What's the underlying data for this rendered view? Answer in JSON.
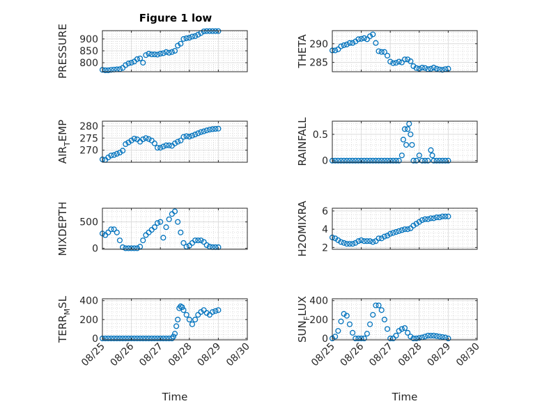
{
  "title": "Figure 1 low",
  "chart_data": [
    {
      "type": "scatter",
      "ylabel": "PRESSURE",
      "ylim": [
        762,
        935
      ],
      "yticks": [
        800,
        850,
        900
      ],
      "xticks": [
        "08/25",
        "08/26",
        "08/27",
        "08/28",
        "08/29",
        "08/30"
      ],
      "xlim": [
        0,
        5
      ],
      "xlabel": "",
      "grid": true,
      "marker_color": "#0072BD",
      "x": [
        0.0,
        0.1,
        0.2,
        0.3,
        0.4,
        0.5,
        0.6,
        0.7,
        0.8,
        0.9,
        1.0,
        1.1,
        1.2,
        1.3,
        1.4,
        1.5,
        1.6,
        1.7,
        1.8,
        1.9,
        2.0,
        2.1,
        2.2,
        2.3,
        2.4,
        2.5,
        2.6,
        2.7,
        2.8,
        2.9,
        3.0,
        3.1,
        3.2,
        3.3,
        3.4,
        3.5,
        3.6,
        3.7,
        3.8,
        3.9,
        4.0
      ],
      "y": [
        770,
        768,
        768,
        770,
        771,
        772,
        773,
        778,
        790,
        797,
        800,
        805,
        815,
        818,
        800,
        832,
        838,
        835,
        835,
        834,
        838,
        840,
        845,
        842,
        845,
        850,
        872,
        880,
        900,
        903,
        905,
        910,
        912,
        918,
        925,
        932,
        933,
        933,
        933,
        933,
        933
      ]
    },
    {
      "type": "scatter",
      "ylabel": "THETA",
      "ylim": [
        282.5,
        293.5
      ],
      "yticks": [
        285,
        290
      ],
      "xticks": [
        "08/25",
        "08/26",
        "08/27",
        "08/28",
        "08/29",
        "08/30"
      ],
      "xlim": [
        0,
        5
      ],
      "xlabel": "",
      "grid": true,
      "marker_color": "#0072BD",
      "x": [
        0.0,
        0.1,
        0.2,
        0.3,
        0.4,
        0.5,
        0.6,
        0.7,
        0.8,
        0.9,
        1.0,
        1.1,
        1.2,
        1.3,
        1.4,
        1.5,
        1.6,
        1.7,
        1.8,
        1.9,
        2.0,
        2.1,
        2.2,
        2.3,
        2.4,
        2.5,
        2.6,
        2.7,
        2.8,
        2.9,
        3.0,
        3.1,
        3.2,
        3.3,
        3.4,
        3.5,
        3.6,
        3.7,
        3.8,
        3.9,
        4.0
      ],
      "y": [
        288.2,
        288.2,
        288.5,
        289.3,
        289.6,
        289.8,
        290.2,
        290.2,
        290.6,
        291.2,
        291.3,
        291.5,
        291.2,
        292.0,
        292.5,
        290.2,
        288.0,
        287.8,
        287.8,
        286.8,
        285.2,
        284.8,
        284.9,
        285.2,
        285.0,
        285.8,
        285.8,
        285.3,
        284.0,
        283.5,
        283.3,
        283.6,
        283.5,
        283.2,
        283.3,
        283.6,
        283.3,
        283.1,
        283.0,
        283.2,
        283.3
      ]
    },
    {
      "type": "scatter",
      "ylabel": "AIR_TEMP",
      "ylim": [
        265,
        282
      ],
      "yticks": [
        270,
        275,
        280
      ],
      "xticks": [
        "08/25",
        "08/26",
        "08/27",
        "08/28",
        "08/29",
        "08/30"
      ],
      "xlim": [
        0,
        5
      ],
      "xlabel": "",
      "grid": true,
      "marker_color": "#0072BD",
      "x": [
        0.0,
        0.1,
        0.2,
        0.3,
        0.4,
        0.5,
        0.6,
        0.7,
        0.8,
        0.9,
        1.0,
        1.1,
        1.2,
        1.3,
        1.4,
        1.5,
        1.6,
        1.7,
        1.8,
        1.9,
        2.0,
        2.1,
        2.2,
        2.3,
        2.4,
        2.5,
        2.6,
        2.7,
        2.8,
        2.9,
        3.0,
        3.1,
        3.2,
        3.3,
        3.4,
        3.5,
        3.6,
        3.7,
        3.8,
        3.9,
        4.0
      ],
      "y": [
        266.2,
        266.0,
        267.0,
        267.8,
        268.0,
        268.5,
        269.0,
        269.8,
        272.5,
        273.2,
        274.0,
        274.8,
        274.5,
        273.5,
        274.5,
        275.0,
        274.6,
        274.0,
        272.8,
        271.0,
        271.0,
        271.5,
        272.0,
        272.0,
        271.8,
        272.8,
        273.5,
        274.0,
        275.5,
        275.8,
        275.6,
        276.0,
        276.5,
        277.0,
        277.5,
        277.8,
        278.2,
        278.5,
        278.7,
        278.8,
        278.9
      ]
    },
    {
      "type": "scatter",
      "ylabel": "RAINFALL",
      "ylim": [
        -0.03,
        0.75
      ],
      "yticks": [
        0,
        0.5
      ],
      "xticks": [
        "08/25",
        "08/26",
        "08/27",
        "08/28",
        "08/29",
        "08/30"
      ],
      "xlim": [
        0,
        5
      ],
      "xlabel": "",
      "grid": true,
      "marker_color": "#0072BD",
      "x": [
        0.0,
        0.1,
        0.2,
        0.3,
        0.4,
        0.5,
        0.6,
        0.7,
        0.8,
        0.9,
        1.0,
        1.1,
        1.2,
        1.3,
        1.4,
        1.5,
        1.6,
        1.7,
        1.8,
        1.9,
        2.0,
        2.1,
        2.2,
        2.3,
        2.4,
        2.45,
        2.5,
        2.55,
        2.6,
        2.65,
        2.7,
        2.75,
        2.8,
        2.9,
        3.0,
        3.1,
        3.2,
        3.3,
        3.4,
        3.45,
        3.5,
        3.6,
        3.7,
        3.8,
        3.9,
        4.0
      ],
      "y": [
        0,
        0,
        0,
        0,
        0,
        0,
        0,
        0,
        0,
        0,
        0,
        0,
        0,
        0,
        0,
        0,
        0,
        0,
        0,
        0,
        0,
        0,
        0,
        0,
        0.1,
        0.4,
        0.6,
        0.3,
        0.6,
        0.7,
        0.5,
        0.3,
        0,
        0,
        0.1,
        0,
        0,
        0,
        0.2,
        0.1,
        0,
        0,
        0,
        0,
        0,
        0
      ]
    },
    {
      "type": "scatter",
      "ylabel": "MIXDEPTH",
      "ylim": [
        -20,
        760
      ],
      "yticks": [
        0,
        500
      ],
      "xticks": [
        "08/25",
        "08/26",
        "08/27",
        "08/28",
        "08/29",
        "08/30"
      ],
      "xlim": [
        0,
        5
      ],
      "xlabel": "",
      "grid": true,
      "marker_color": "#0072BD",
      "x": [
        0.0,
        0.1,
        0.2,
        0.3,
        0.4,
        0.5,
        0.6,
        0.7,
        0.8,
        0.9,
        1.0,
        1.1,
        1.2,
        1.3,
        1.4,
        1.5,
        1.6,
        1.7,
        1.8,
        1.9,
        2.0,
        2.1,
        2.2,
        2.3,
        2.4,
        2.5,
        2.6,
        2.7,
        2.8,
        2.9,
        3.0,
        3.1,
        3.2,
        3.3,
        3.4,
        3.5,
        3.6,
        3.7,
        3.8,
        3.9,
        4.0
      ],
      "y": [
        280,
        250,
        300,
        360,
        360,
        300,
        150,
        20,
        0,
        0,
        0,
        0,
        0,
        30,
        150,
        250,
        300,
        350,
        400,
        480,
        500,
        200,
        400,
        550,
        650,
        700,
        500,
        300,
        100,
        30,
        50,
        100,
        150,
        150,
        150,
        120,
        60,
        30,
        20,
        20,
        20
      ]
    },
    {
      "type": "scatter",
      "ylabel": "H2OMIXRA",
      "ylim": [
        1.8,
        6.3
      ],
      "yticks": [
        2,
        4,
        6
      ],
      "xticks": [
        "08/25",
        "08/26",
        "08/27",
        "08/28",
        "08/29",
        "08/30"
      ],
      "xlim": [
        0,
        5
      ],
      "xlabel": "",
      "grid": true,
      "marker_color": "#0072BD",
      "x": [
        0.0,
        0.1,
        0.2,
        0.3,
        0.4,
        0.5,
        0.6,
        0.7,
        0.8,
        0.9,
        1.0,
        1.1,
        1.2,
        1.3,
        1.4,
        1.5,
        1.6,
        1.7,
        1.8,
        1.9,
        2.0,
        2.1,
        2.2,
        2.3,
        2.4,
        2.5,
        2.6,
        2.7,
        2.8,
        2.9,
        3.0,
        3.1,
        3.2,
        3.3,
        3.4,
        3.5,
        3.6,
        3.7,
        3.8,
        3.9,
        4.0
      ],
      "y": [
        3.1,
        3.0,
        2.8,
        2.6,
        2.5,
        2.4,
        2.4,
        2.4,
        2.5,
        2.7,
        2.8,
        2.7,
        2.7,
        2.7,
        2.6,
        2.7,
        3.0,
        3.0,
        3.2,
        3.3,
        3.5,
        3.6,
        3.7,
        3.8,
        3.9,
        4.0,
        4.0,
        4.1,
        4.4,
        4.6,
        4.8,
        5.0,
        5.1,
        5.1,
        5.2,
        5.2,
        5.3,
        5.3,
        5.4,
        5.4,
        5.4
      ]
    },
    {
      "type": "scatter",
      "ylabel": "TERR_MSL",
      "ylim": [
        -15,
        420
      ],
      "yticks": [
        0,
        200,
        400
      ],
      "xticks": [
        "08/25",
        "08/26",
        "08/27",
        "08/28",
        "08/29",
        "08/30"
      ],
      "xlim": [
        0,
        5
      ],
      "xlabel": "Time",
      "grid": true,
      "marker_color": "#0072BD",
      "x": [
        0.0,
        0.1,
        0.2,
        0.3,
        0.4,
        0.5,
        0.6,
        0.7,
        0.8,
        0.9,
        1.0,
        1.1,
        1.2,
        1.3,
        1.4,
        1.5,
        1.6,
        1.7,
        1.8,
        1.9,
        2.0,
        2.1,
        2.2,
        2.3,
        2.4,
        2.45,
        2.5,
        2.55,
        2.6,
        2.65,
        2.7,
        2.75,
        2.8,
        2.9,
        3.0,
        3.1,
        3.2,
        3.3,
        3.4,
        3.5,
        3.6,
        3.7,
        3.8,
        3.9,
        4.0
      ],
      "y": [
        0,
        0,
        0,
        0,
        0,
        0,
        0,
        0,
        0,
        0,
        0,
        0,
        0,
        0,
        0,
        0,
        0,
        0,
        0,
        0,
        0,
        0,
        0,
        0,
        0,
        20,
        50,
        130,
        200,
        320,
        340,
        330,
        300,
        250,
        200,
        150,
        200,
        250,
        280,
        300,
        270,
        250,
        280,
        290,
        300
      ]
    },
    {
      "type": "scatter",
      "ylabel": "SUN_FLUX",
      "ylim": [
        -15,
        420
      ],
      "yticks": [
        0,
        200,
        400
      ],
      "xticks": [
        "08/25",
        "08/26",
        "08/27",
        "08/28",
        "08/29",
        "08/30"
      ],
      "xlim": [
        0,
        5
      ],
      "xlabel": "Time",
      "grid": true,
      "marker_color": "#0072BD",
      "x": [
        0.0,
        0.1,
        0.2,
        0.3,
        0.4,
        0.5,
        0.6,
        0.7,
        0.8,
        0.9,
        1.0,
        1.1,
        1.2,
        1.3,
        1.4,
        1.5,
        1.6,
        1.7,
        1.8,
        1.9,
        2.0,
        2.1,
        2.2,
        2.3,
        2.4,
        2.5,
        2.6,
        2.7,
        2.8,
        2.9,
        3.0,
        3.1,
        3.2,
        3.3,
        3.4,
        3.5,
        3.6,
        3.7,
        3.8,
        3.9,
        4.0
      ],
      "y": [
        0,
        20,
        80,
        180,
        260,
        240,
        150,
        60,
        0,
        0,
        0,
        0,
        50,
        150,
        250,
        350,
        350,
        300,
        200,
        100,
        0,
        0,
        30,
        80,
        100,
        110,
        60,
        20,
        0,
        0,
        5,
        10,
        20,
        30,
        30,
        30,
        25,
        20,
        15,
        10,
        0
      ]
    }
  ]
}
